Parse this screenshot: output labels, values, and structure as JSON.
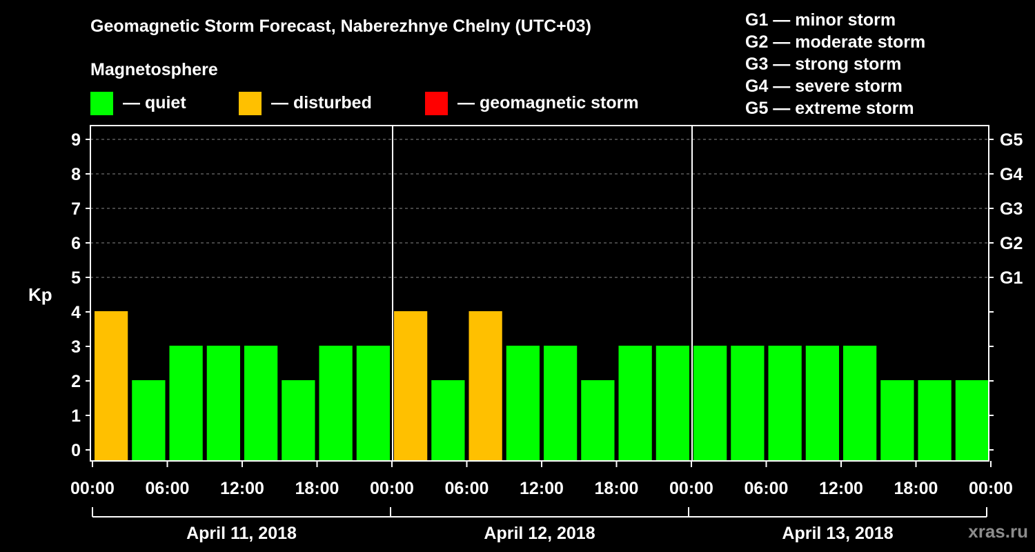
{
  "header": {
    "title": "Geomagnetic Storm Forecast, Naberezhnye Chelny (UTC+03)",
    "subtitle": "Magnetosphere"
  },
  "legend": [
    {
      "label": "— quiet",
      "color": "#00ff00"
    },
    {
      "label": "— disturbed",
      "color": "#ffc000"
    },
    {
      "label": "— geomagnetic storm",
      "color": "#ff0000"
    }
  ],
  "storm_scale": [
    "G1 — minor storm",
    "G2 — moderate storm",
    "G3 — strong storm",
    "G4 — severe storm",
    "G5 — extreme storm"
  ],
  "watermark": "xras.ru",
  "chart_data": {
    "type": "bar",
    "title": "Geomagnetic Storm Forecast, Naberezhnye Chelny (UTC+03)",
    "ylabel": "Kp",
    "ylim": [
      0,
      9
    ],
    "yticks": [
      "0",
      "1",
      "2",
      "3",
      "4",
      "5",
      "6",
      "7",
      "8",
      "9"
    ],
    "right_ticks": [
      {
        "kp": 5,
        "label": "G1"
      },
      {
        "kp": 6,
        "label": "G2"
      },
      {
        "kp": 7,
        "label": "G3"
      },
      {
        "kp": 8,
        "label": "G4"
      },
      {
        "kp": 9,
        "label": "G5"
      }
    ],
    "xticks": [
      "00:00",
      "06:00",
      "12:00",
      "18:00",
      "00:00",
      "06:00",
      "12:00",
      "18:00",
      "00:00",
      "06:00",
      "12:00",
      "18:00",
      "00:00"
    ],
    "days": [
      "April 11, 2018",
      "April 12, 2018",
      "April 13, 2018"
    ],
    "values": [
      4,
      2,
      3,
      3,
      3,
      2,
      3,
      3,
      4,
      2,
      4,
      3,
      3,
      2,
      3,
      3,
      3,
      3,
      3,
      3,
      3,
      2,
      2,
      2
    ],
    "level_colors": {
      "quiet": "#00ff00",
      "disturbed": "#ffc000",
      "storm": "#ff0000"
    },
    "grid": true
  }
}
